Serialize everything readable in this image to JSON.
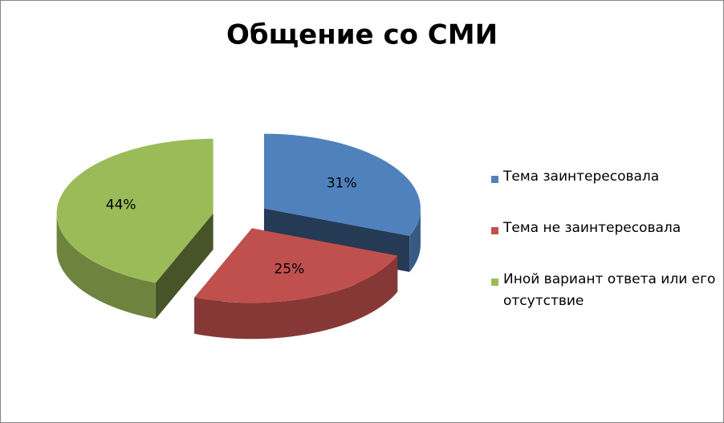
{
  "chart_data": {
    "type": "pie",
    "title": "Общение со СМИ",
    "categories": [
      "Тема заинтересовала",
      "Тема не заинтересовала",
      "Иной вариант ответа или его отсутствие"
    ],
    "values": [
      31,
      25,
      44
    ],
    "value_labels": [
      "31%",
      "25%",
      "44%"
    ],
    "colors": [
      "#4f81bd",
      "#c0504d",
      "#9bbb59"
    ],
    "legend": "right",
    "exploded": true,
    "three_d": true
  }
}
